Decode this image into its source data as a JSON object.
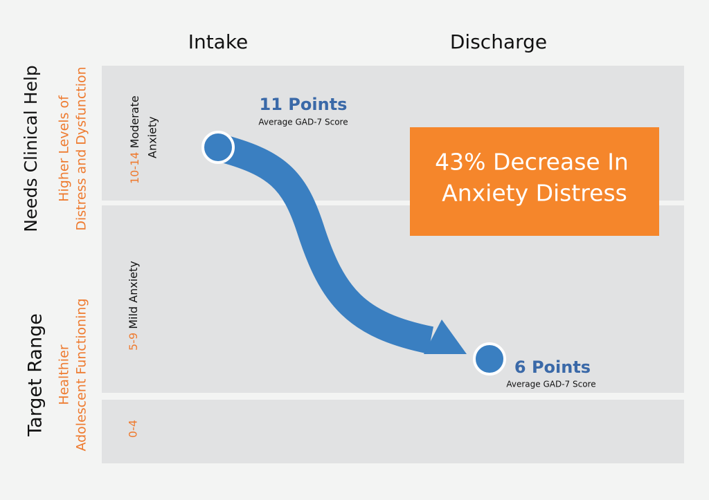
{
  "columns": [
    "Intake",
    "Discharge"
  ],
  "groups": [
    {
      "label": "Needs Clinical Help",
      "description": [
        "Higher Levels of",
        "Distress and Dysfunction"
      ]
    },
    {
      "label": "Target Range",
      "description": [
        "Healthier",
        "Adolescent Functioning"
      ]
    }
  ],
  "bands": [
    {
      "range": "10-14",
      "label": [
        "Moderate",
        "Anxiety"
      ]
    },
    {
      "range": "5-9",
      "label": "Mild Anxiety"
    },
    {
      "range": "0-4"
    }
  ],
  "intake": {
    "score": "11 Points",
    "caption": "Average GAD-7 Score"
  },
  "discharge": {
    "score": "6 Points",
    "caption": "Average GAD-7 Score"
  },
  "callout": [
    "43% Decrease In",
    "Anxiety Distress"
  ]
}
